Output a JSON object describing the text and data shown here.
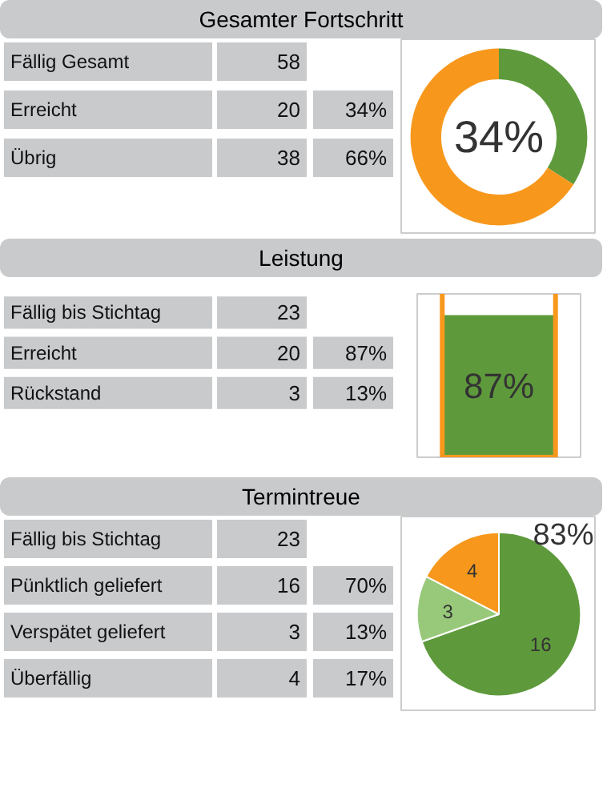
{
  "chart_data": [
    {
      "type": "other",
      "title": "Gesamter Fortschritt",
      "categories": [
        "Fällig Gesamt",
        "Erreicht",
        "Übrig"
      ],
      "annotations": [
        "58",
        "20",
        "34%",
        "38",
        "66%"
      ]
    },
    {
      "type": "donut",
      "categories": [
        null,
        null
      ],
      "values": [
        34,
        66
      ],
      "colors": [
        "#5e9a3c",
        "#f7981d"
      ],
      "annotations": [
        "34%"
      ]
    },
    {
      "type": "other",
      "title": "Leistung",
      "categories": [
        "Fällig bis Stichtag",
        "Erreicht",
        "Rückstand"
      ],
      "annotations": [
        "23",
        "20",
        "87%",
        "3",
        "13%"
      ]
    },
    {
      "type": "bar",
      "categories": [
        null
      ],
      "values": [
        87
      ],
      "value_labels": [
        "87%"
      ],
      "color": "#5e9a3c",
      "ylim": [
        0,
        100
      ]
    },
    {
      "type": "other",
      "title": "Termintreue",
      "categories": [
        "Fällig bis Stichtag",
        "Pünktlich geliefert",
        "Verspätet geliefert",
        "Überfällig"
      ],
      "annotations": [
        "23",
        "16",
        "70%",
        "3",
        "13%",
        "4",
        "17%"
      ]
    },
    {
      "type": "pie",
      "categories": [
        null,
        null,
        null
      ],
      "values": [
        16,
        3,
        4
      ],
      "colors": [
        "#5e9a3c",
        "#98c97a",
        "#f7981d"
      ],
      "data_labels": true,
      "annotations": [
        "83%"
      ]
    }
  ]
}
